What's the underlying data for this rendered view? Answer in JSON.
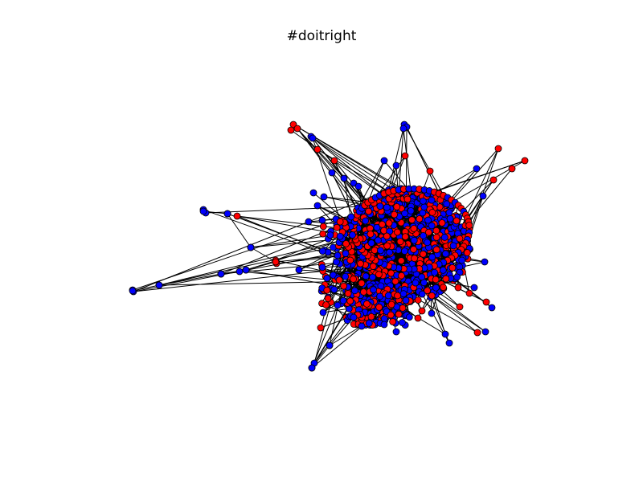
{
  "figure": {
    "title": "#doitright"
  },
  "node_colors": {
    "red_group": "#ff0000",
    "blue_group": "#0000ff"
  },
  "edge_color": "#000000"
}
